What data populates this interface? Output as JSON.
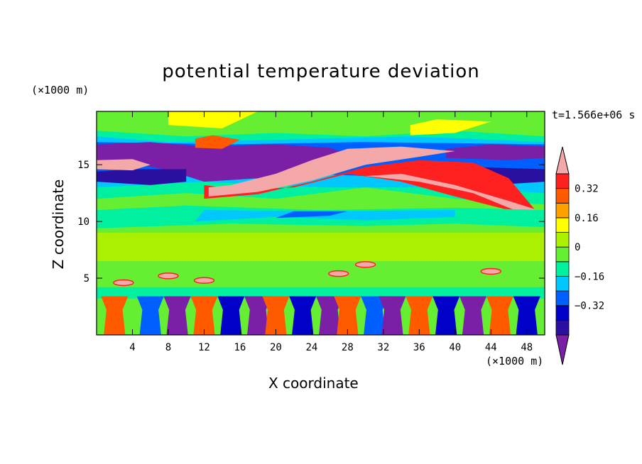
{
  "title": "potential temperature deviation",
  "time_label": "t=1.566e+06 s",
  "y_unit": "(×1000 m)",
  "x_unit": "(×1000 m)",
  "chart_data": {
    "type": "heatmap",
    "title": "potential temperature deviation",
    "xlabel": "X coordinate",
    "ylabel": "Z coordinate",
    "xlim": [
      0,
      50
    ],
    "ylim": [
      0,
      19.7
    ],
    "x_ticks": [
      4,
      8,
      12,
      16,
      20,
      24,
      28,
      32,
      36,
      40,
      44,
      48
    ],
    "y_ticks": [
      5,
      10,
      15
    ],
    "colorbar": {
      "levels": [
        -0.48,
        -0.4,
        -0.32,
        -0.24,
        -0.16,
        -0.08,
        0,
        0.08,
        0.16,
        0.24,
        0.32,
        0.4,
        0.48
      ],
      "tick_labels": [
        "0.32",
        "0.16",
        "0",
        "-0.16",
        "-0.32"
      ],
      "tick_values": [
        0.32,
        0.16,
        0,
        -0.16,
        -0.32
      ],
      "colors": [
        "#7a1fa6",
        "#2a0fa0",
        "#0000c8",
        "#0060ff",
        "#00c8ff",
        "#00f0a0",
        "#66ee33",
        "#aaf000",
        "#ffff00",
        "#ffa000",
        "#ff5a00",
        "#ff2020",
        "#f4a8a8"
      ],
      "extend": "both"
    },
    "bands": [
      {
        "name": "pink upper layer",
        "z_center": [
          13.5,
          16.5
        ],
        "value": 0.48
      },
      {
        "name": "purple upper layer",
        "z_center": [
          14,
          16.8
        ],
        "value": -0.48
      },
      {
        "name": "cyan mid layer",
        "z_center": [
          10,
          11
        ],
        "value": -0.16
      },
      {
        "name": "surface turbulence",
        "z_range": [
          0,
          4
        ],
        "value": "mixed"
      }
    ]
  }
}
